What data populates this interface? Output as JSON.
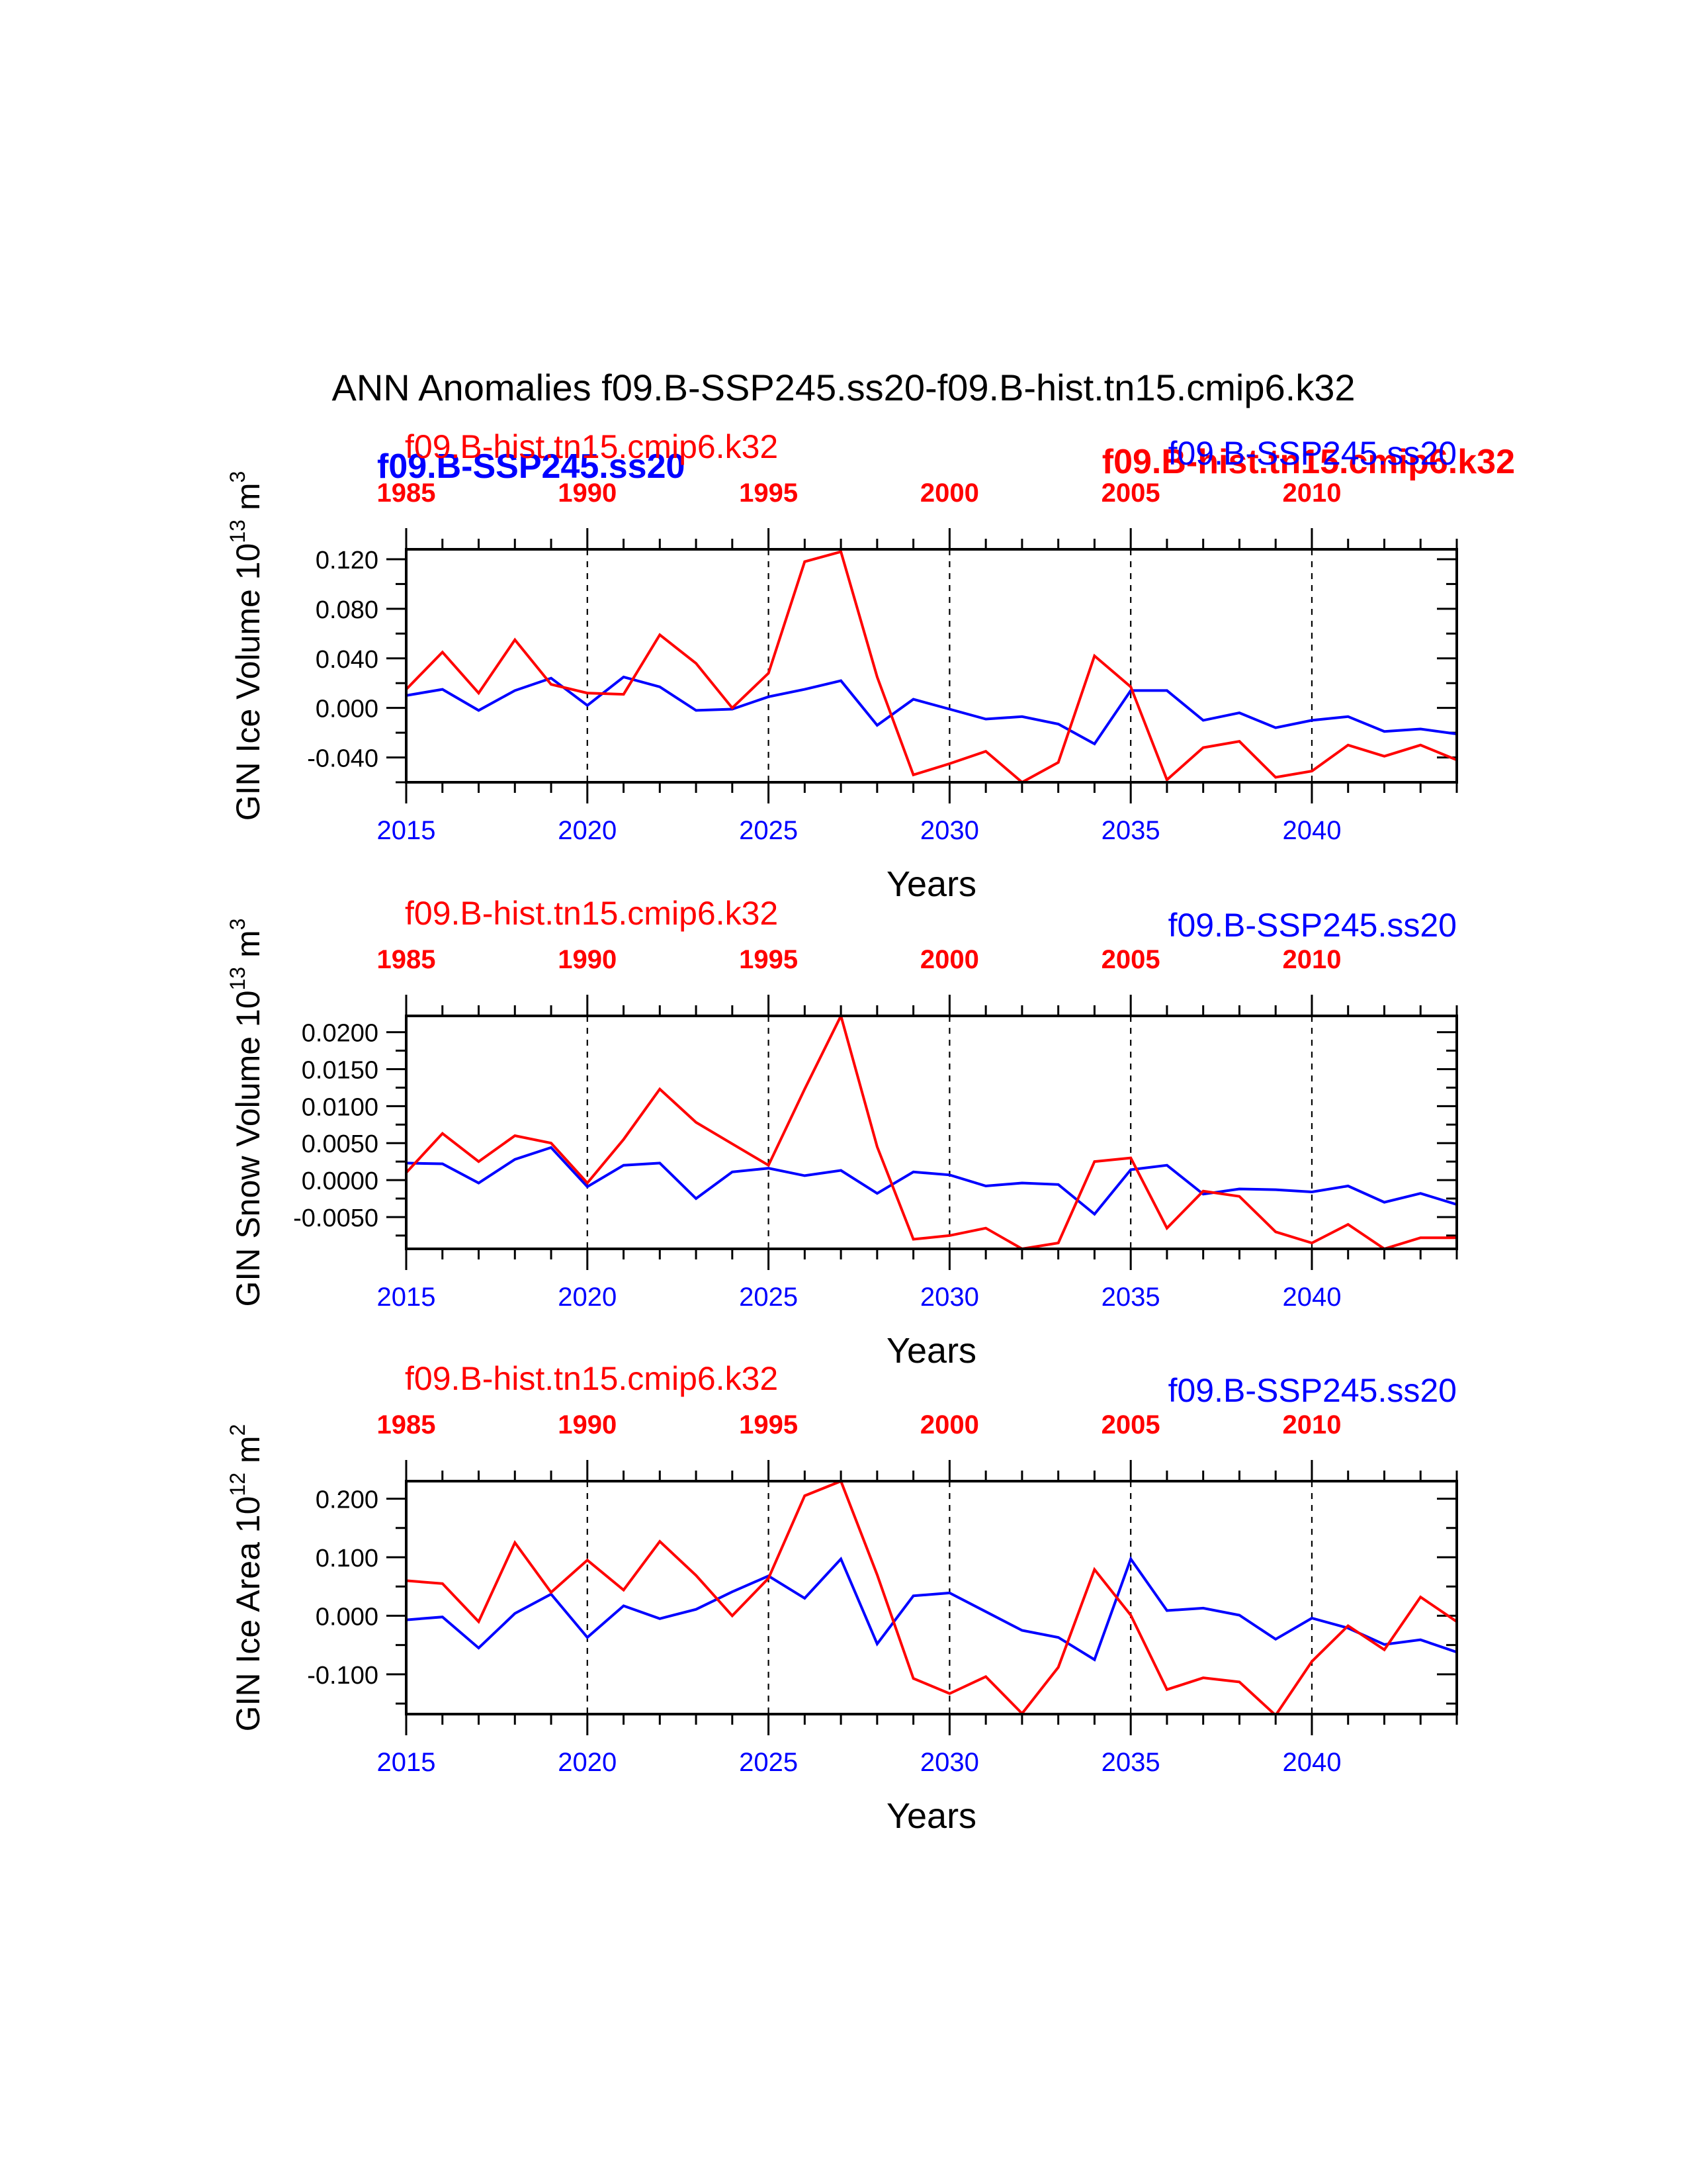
{
  "figure": {
    "title": "ANN Anomalies f09.B-SSP245.ss20-f09.B-hist.tn15.cmip6.k32",
    "legend_overlay": {
      "left": "f09.B-SSP245.ss20",
      "right": "f09.B-hist.tn15.cmip6.k32"
    }
  },
  "colors": {
    "ssp245": "#0000ff",
    "hist": "#ff0000",
    "axis": "#000000"
  },
  "chart_data": [
    {
      "type": "line",
      "ylabel": "GIN Ice Volume 10",
      "ylabel_sup": "13",
      "ylabel_unit": "m",
      "ylabel_unit_sup": "3",
      "xlabel": "Years",
      "ylim": [
        -0.06,
        0.128
      ],
      "yticks": [
        -0.04,
        0.0,
        0.04,
        0.08,
        0.12
      ],
      "ytick_labels": [
        "-0.040",
        "0.000",
        "0.040",
        "0.080",
        "0.120"
      ],
      "grid": "vertical dashed at major years",
      "bottom_axis": {
        "range": [
          2015,
          2044
        ],
        "ticks": [
          2015,
          2020,
          2025,
          2030,
          2035,
          2040
        ],
        "labels": [
          "2015",
          "2020",
          "2025",
          "2030",
          "2035",
          "2040"
        ]
      },
      "top_axis": {
        "ticks": [
          1985,
          1990,
          1995,
          2000,
          2005,
          2010
        ],
        "labels": [
          "1985",
          "1990",
          "1995",
          "2000",
          "2005",
          "2010"
        ]
      },
      "left_label": "f09.B-hist.tn15.cmip6.k32",
      "right_label": "f09.B-SSP245.ss20",
      "series": [
        {
          "name": "f09.B-SSP245.ss20",
          "color": "blue",
          "x": [
            2015,
            2016,
            2017,
            2018,
            2019,
            2020,
            2021,
            2022,
            2023,
            2024,
            2025,
            2026,
            2027,
            2028,
            2029,
            2030,
            2031,
            2032,
            2033,
            2034,
            2035,
            2036,
            2037,
            2038,
            2039,
            2040,
            2041,
            2042,
            2043,
            2044
          ],
          "values": [
            0.01,
            0.015,
            -0.002,
            0.014,
            0.024,
            0.002,
            0.025,
            0.017,
            -0.002,
            -0.001,
            0.009,
            0.015,
            0.022,
            -0.014,
            0.007,
            -0.001,
            -0.009,
            -0.007,
            -0.013,
            -0.029,
            0.014,
            0.014,
            -0.01,
            -0.004,
            -0.016,
            -0.01,
            -0.007,
            -0.019,
            -0.017,
            -0.021
          ]
        },
        {
          "name": "f09.B-hist.tn15.cmip6.k32",
          "color": "red",
          "x": [
            2015,
            2016,
            2017,
            2018,
            2019,
            2020,
            2021,
            2022,
            2023,
            2024,
            2025,
            2026,
            2027,
            2028,
            2029,
            2030,
            2031,
            2032,
            2033,
            2034,
            2035,
            2036,
            2037,
            2038,
            2039,
            2040,
            2041,
            2042,
            2043,
            2044
          ],
          "values": [
            0.015,
            0.045,
            0.012,
            0.055,
            0.019,
            0.012,
            0.011,
            0.059,
            0.036,
            0.0,
            0.028,
            0.118,
            0.126,
            0.025,
            -0.054,
            -0.045,
            -0.035,
            -0.06,
            -0.044,
            0.042,
            0.017,
            -0.058,
            -0.032,
            -0.027,
            -0.056,
            -0.051,
            -0.03,
            -0.039,
            -0.03,
            -0.042
          ]
        }
      ]
    },
    {
      "type": "line",
      "ylabel": "GIN Snow Volume 10",
      "ylabel_sup": "13",
      "ylabel_unit": "m",
      "ylabel_unit_sup": "3",
      "xlabel": "Years",
      "ylim": [
        -0.0093,
        0.0222
      ],
      "yticks": [
        -0.005,
        0.0,
        0.005,
        0.01,
        0.015,
        0.02
      ],
      "ytick_labels": [
        "-0.0050",
        "0.0000",
        "0.0050",
        "0.0100",
        "0.0150",
        "0.0200"
      ],
      "grid": "vertical dashed at major years",
      "bottom_axis": {
        "range": [
          2015,
          2044
        ],
        "ticks": [
          2015,
          2020,
          2025,
          2030,
          2035,
          2040
        ],
        "labels": [
          "2015",
          "2020",
          "2025",
          "2030",
          "2035",
          "2040"
        ]
      },
      "top_axis": {
        "ticks": [
          1985,
          1990,
          1995,
          2000,
          2005,
          2010
        ],
        "labels": [
          "1985",
          "1990",
          "1995",
          "2000",
          "2005",
          "2010"
        ]
      },
      "left_label": "f09.B-hist.tn15.cmip6.k32",
      "right_label": "f09.B-SSP245.ss20",
      "series": [
        {
          "name": "f09.B-SSP245.ss20",
          "color": "blue",
          "x": [
            2015,
            2016,
            2017,
            2018,
            2019,
            2020,
            2021,
            2022,
            2023,
            2024,
            2025,
            2026,
            2027,
            2028,
            2029,
            2030,
            2031,
            2032,
            2033,
            2034,
            2035,
            2036,
            2037,
            2038,
            2039,
            2040,
            2041,
            2042,
            2043,
            2044
          ],
          "values": [
            0.0023,
            0.0022,
            -0.0004,
            0.0028,
            0.0044,
            -0.0009,
            0.002,
            0.0023,
            -0.0025,
            0.0011,
            0.0016,
            0.0006,
            0.0013,
            -0.0018,
            0.0011,
            0.0007,
            -0.0008,
            -0.0004,
            -0.0006,
            -0.0046,
            0.0014,
            0.002,
            -0.0019,
            -0.0012,
            -0.0013,
            -0.0016,
            -0.0008,
            -0.003,
            -0.0018,
            -0.0033
          ]
        },
        {
          "name": "f09.B-hist.tn15.cmip6.k32",
          "color": "red",
          "x": [
            2015,
            2016,
            2017,
            2018,
            2019,
            2020,
            2021,
            2022,
            2023,
            2024,
            2025,
            2026,
            2027,
            2028,
            2029,
            2030,
            2031,
            2032,
            2033,
            2034,
            2035,
            2036,
            2037,
            2038,
            2039,
            2040,
            2041,
            2042,
            2043,
            2044
          ],
          "values": [
            0.001,
            0.0063,
            0.0025,
            0.006,
            0.005,
            -0.0004,
            0.0055,
            0.0123,
            0.0078,
            0.0049,
            0.002,
            0.0123,
            0.0222,
            0.0045,
            -0.008,
            -0.0075,
            -0.0065,
            -0.0093,
            -0.0085,
            0.0025,
            0.003,
            -0.0065,
            -0.0015,
            -0.0022,
            -0.007,
            -0.0085,
            -0.006,
            -0.0093,
            -0.0078,
            -0.0078
          ]
        }
      ]
    },
    {
      "type": "line",
      "ylabel": "GIN Ice Area 10",
      "ylabel_sup": "12",
      "ylabel_unit": "m",
      "ylabel_unit_sup": "2",
      "xlabel": "Years",
      "ylim": [
        -0.168,
        0.23
      ],
      "yticks": [
        -0.1,
        0.0,
        0.1,
        0.2
      ],
      "ytick_labels": [
        "-0.100",
        "0.000",
        "0.100",
        "0.200"
      ],
      "grid": "vertical dashed at major years",
      "bottom_axis": {
        "range": [
          2015,
          2044
        ],
        "ticks": [
          2015,
          2020,
          2025,
          2030,
          2035,
          2040
        ],
        "labels": [
          "2015",
          "2020",
          "2025",
          "2030",
          "2035",
          "2040"
        ]
      },
      "top_axis": {
        "ticks": [
          1985,
          1990,
          1995,
          2000,
          2005,
          2010
        ],
        "labels": [
          "1985",
          "1990",
          "1995",
          "2000",
          "2005",
          "2010"
        ]
      },
      "left_label": "f09.B-hist.tn15.cmip6.k32",
      "right_label": "f09.B-SSP245.ss20",
      "series": [
        {
          "name": "f09.B-SSP245.ss20",
          "color": "blue",
          "x": [
            2015,
            2016,
            2017,
            2018,
            2019,
            2020,
            2021,
            2022,
            2023,
            2024,
            2025,
            2026,
            2027,
            2028,
            2029,
            2030,
            2031,
            2032,
            2033,
            2034,
            2035,
            2036,
            2037,
            2038,
            2039,
            2040,
            2041,
            2042,
            2043,
            2044
          ],
          "values": [
            -0.007,
            -0.002,
            -0.055,
            0.004,
            0.037,
            -0.037,
            0.017,
            -0.005,
            0.011,
            0.041,
            0.068,
            0.03,
            0.097,
            -0.048,
            0.034,
            0.039,
            0.007,
            -0.025,
            -0.037,
            -0.075,
            0.097,
            0.009,
            0.013,
            0.001,
            -0.04,
            -0.004,
            -0.021,
            -0.049,
            -0.041,
            -0.062
          ]
        },
        {
          "name": "f09.B-hist.tn15.cmip6.k32",
          "color": "red",
          "x": [
            2015,
            2016,
            2017,
            2018,
            2019,
            2020,
            2021,
            2022,
            2023,
            2024,
            2025,
            2026,
            2027,
            2028,
            2029,
            2030,
            2031,
            2032,
            2033,
            2034,
            2035,
            2036,
            2037,
            2038,
            2039,
            2040,
            2041,
            2042,
            2043,
            2044
          ],
          "values": [
            0.06,
            0.055,
            -0.01,
            0.125,
            0.04,
            0.095,
            0.044,
            0.127,
            0.069,
            0.0,
            0.064,
            0.205,
            0.23,
            0.07,
            -0.107,
            -0.133,
            -0.104,
            -0.167,
            -0.088,
            0.079,
            0.001,
            -0.126,
            -0.106,
            -0.113,
            -0.17,
            -0.078,
            -0.017,
            -0.058,
            0.032,
            -0.01
          ]
        }
      ]
    }
  ]
}
